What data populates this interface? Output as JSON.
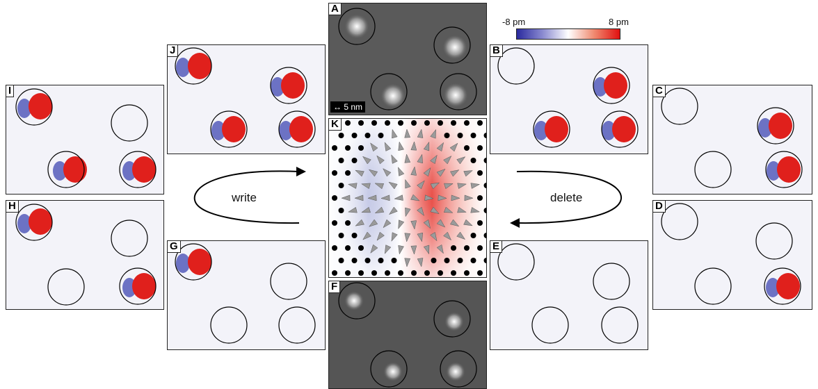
{
  "panels": {
    "A": "A",
    "B": "B",
    "C": "C",
    "D": "D",
    "E": "E",
    "F": "F",
    "G": "G",
    "H": "H",
    "I": "I",
    "J": "J",
    "K": "K"
  },
  "colorbar": {
    "min_label": "-8 pm",
    "max_label": "8 pm",
    "low_color": "#2a2a9e",
    "mid_color": "#ffffff",
    "high_color": "#e01010"
  },
  "scale_bar": "5 nm",
  "cycle_labels": {
    "left": "write",
    "right": "delete"
  }
}
